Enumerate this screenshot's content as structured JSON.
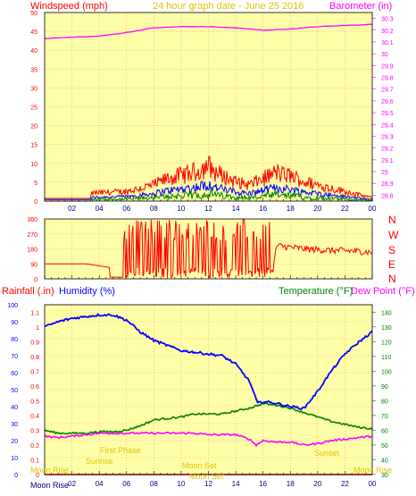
{
  "header": {
    "windspeed_label": "Windspeed (mph)",
    "graph_date": "24 hour graph date - June 25 2016",
    "barometer_label": "Barometer (in)"
  },
  "lower_header": {
    "rainfall_label": "Rainfall (.in)",
    "humidity_label": "Humidity (%)",
    "temperature_label": "Temperature (°F)",
    "dewpoint_label": "Dew Point (°F)"
  },
  "compass": [
    "N",
    "W",
    "S",
    "E",
    "N"
  ],
  "astro": {
    "moon_rise": "Moon Rise",
    "moon_set": "Moon Set",
    "sunrise": "Sunrise",
    "sunset": "Sunset",
    "moon_set_2": "Moon Set",
    "moon_rise_2": "Moon Rise",
    "first_phase": "First Phase"
  },
  "colors": {
    "plot_bg": "#ffffa8",
    "grid": "#ff9090",
    "gust": "#ff0000",
    "avg_wind": "#0000ff",
    "min_wind": "#008000",
    "barometer": "#ff00ff",
    "rain": "#ff0000",
    "humidity": "#0000ff",
    "temperature": "#008000",
    "dewpoint": "#ff00ff",
    "astro": "#e0c000"
  },
  "chart_data": [
    {
      "type": "line",
      "title": "24 hour graph date - June 25 2016",
      "ylabel": "Windspeed (mph)",
      "y2label": "Barometer (in)",
      "x_ticks": [
        "02",
        "04",
        "06",
        "08",
        "10",
        "12",
        "14",
        "16",
        "18",
        "20",
        "22",
        "00"
      ],
      "ylim": [
        0,
        50
      ],
      "y_ticks": [
        0,
        5,
        10,
        15,
        20,
        25,
        30,
        35,
        40,
        45,
        50
      ],
      "y2lim": [
        28.75,
        30.35
      ],
      "y2_ticks": [
        "28.8",
        "28.9",
        "29",
        "29.1",
        "29.2",
        "29.3",
        "29.4",
        "29.5",
        "29.6",
        "29.7",
        "29.8",
        "29.9",
        "30",
        "30.1",
        "30.2",
        "30.3"
      ],
      "grid": true,
      "series": [
        {
          "name": "Windspeed (mph)",
          "hours": [
            0,
            2,
            3.3,
            3.5,
            6,
            7,
            8,
            9,
            10,
            11,
            11.5,
            12,
            12.5,
            13,
            14,
            15,
            16,
            16.5,
            17,
            17.5,
            18,
            19,
            20,
            21,
            22,
            23,
            24
          ],
          "values": [
            1,
            1,
            1,
            2.5,
            3,
            4,
            5,
            7,
            8,
            9,
            10,
            11,
            9,
            8,
            6,
            5,
            7,
            8,
            9,
            8,
            8,
            6,
            5,
            4,
            3,
            2,
            1
          ]
        },
        {
          "name": "Barometer (in)",
          "hours": [
            0,
            2,
            4,
            6,
            8,
            10,
            12,
            14,
            16,
            18,
            20,
            22,
            24
          ],
          "values": [
            30.13,
            30.14,
            30.15,
            30.18,
            30.22,
            30.23,
            30.23,
            30.22,
            30.2,
            30.21,
            30.23,
            30.24,
            30.25
          ]
        }
      ]
    },
    {
      "type": "scatter",
      "ylim": [
        0,
        360
      ],
      "y_ticks": [
        0,
        90,
        180,
        270,
        360
      ],
      "x_ticks": [
        "02",
        "04",
        "06",
        "08",
        "10",
        "12",
        "14",
        "16",
        "18",
        "20",
        "22",
        "00"
      ],
      "grid": true,
      "series": [
        {
          "name": "Wind direction",
          "hours": [
            0,
            3,
            4,
            5,
            5.8,
            6,
            7,
            8,
            9,
            10,
            11,
            12,
            13,
            14,
            15,
            16,
            16.7,
            17,
            18,
            19,
            20,
            21,
            22,
            23,
            24
          ],
          "values": [
            90,
            90,
            80,
            10,
            10,
            350,
            280,
            200,
            300,
            250,
            330,
            200,
            300,
            240,
            320,
            280,
            40,
            200,
            190,
            180,
            175,
            170,
            170,
            165,
            160
          ]
        }
      ]
    },
    {
      "type": "line",
      "ylabel": "Humidity (%)",
      "y2label": "Temperature (°F)",
      "x_ticks": [
        "02",
        "04",
        "06",
        "08",
        "10",
        "12",
        "14",
        "16",
        "18",
        "20",
        "22",
        "00"
      ],
      "ylim": [
        0,
        100
      ],
      "y_ticks": [
        0,
        10,
        20,
        30,
        40,
        50,
        60,
        70,
        80,
        90,
        100
      ],
      "rain_ylim": [
        0,
        1.15
      ],
      "rain_ticks": [
        "0",
        "0.1",
        "0.2",
        "0.3",
        "0.4",
        "0.5",
        "0.6",
        "0.7",
        "0.8",
        "0.9",
        "1",
        "1.1"
      ],
      "y2lim": [
        30,
        145
      ],
      "y2_ticks": [
        30,
        40,
        50,
        60,
        70,
        80,
        90,
        100,
        110,
        120,
        130,
        140
      ],
      "grid": true,
      "series": [
        {
          "name": "Humidity (%)",
          "hours": [
            0,
            1,
            2,
            3,
            4,
            5,
            6,
            7,
            8,
            9,
            10,
            11,
            12,
            13,
            14,
            15,
            15.6,
            16,
            17,
            18,
            19,
            20,
            21,
            22,
            23,
            24
          ],
          "values": [
            87,
            90,
            92,
            93,
            94,
            94,
            91,
            84,
            79,
            76,
            73,
            72,
            71,
            70,
            65,
            55,
            42,
            43,
            42,
            40,
            39,
            49,
            61,
            71,
            78,
            84
          ]
        },
        {
          "name": "Temperature (°F)",
          "hours": [
            0,
            1,
            2,
            3,
            4,
            5,
            6,
            7,
            8,
            9,
            10,
            11,
            12,
            13,
            14,
            15,
            16,
            17,
            18,
            19,
            20,
            21,
            22,
            23,
            24
          ],
          "values": [
            60,
            58,
            58,
            58,
            59,
            59,
            60,
            63,
            67,
            68,
            69,
            71,
            71,
            71,
            73,
            75,
            78,
            77,
            75,
            72,
            69,
            66,
            64,
            62,
            61
          ]
        },
        {
          "name": "Dew Point (°F)",
          "hours": [
            0,
            1,
            2,
            3,
            4,
            5,
            6,
            7,
            8,
            9,
            10,
            11,
            12,
            13,
            14,
            15,
            15.5,
            16,
            17,
            18,
            19,
            20,
            21,
            22,
            23,
            24
          ],
          "values": [
            56,
            55,
            56,
            57,
            58,
            58,
            58,
            58,
            58,
            58,
            58,
            58,
            57,
            57,
            57,
            54,
            50,
            53,
            52,
            52,
            50,
            51,
            53,
            54,
            55,
            56
          ]
        },
        {
          "name": "Rainfall (.in)",
          "hours": [
            0,
            24
          ],
          "values": [
            0,
            0
          ]
        }
      ]
    }
  ]
}
